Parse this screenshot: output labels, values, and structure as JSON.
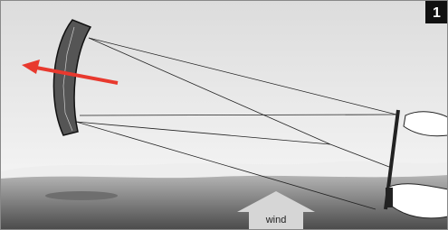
{
  "badge": "1",
  "wind_label": "wind"
}
